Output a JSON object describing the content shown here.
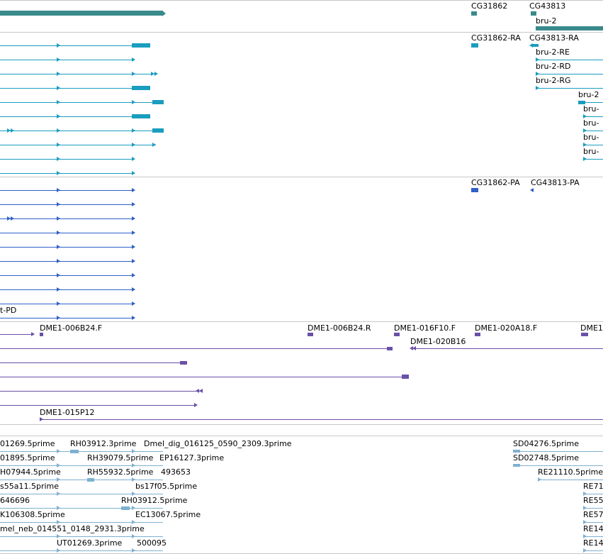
{
  "colors": {
    "gene": "#3a8a8c",
    "transcript": "#1a9dbf",
    "protein": "#3060c8",
    "clone": "#6a50a8",
    "est": "#7fb0d0",
    "separator": "#c8c8c8"
  },
  "gene_track": {
    "labels": [
      "CG31862",
      "CG43813",
      "bru-2"
    ]
  },
  "transcript_track": {
    "labels": [
      "CG31862-RA",
      "CG43813-RA",
      "bru-2-RE",
      "bru-2-RD",
      "bru-2-RG",
      "bru-2",
      "bru-",
      "bru-",
      "bru-",
      "bru-"
    ]
  },
  "protein_track": {
    "labels": [
      "CG31862-PA",
      "CG43813-PA",
      "t-PD"
    ]
  },
  "clone_track": {
    "labels": [
      "DME1-006B24.F",
      "DME1-006B24.R",
      "DME1-016F10.F",
      "DME1-020A18.F",
      "DME1",
      "DME1-020B16",
      "DME1-015P12"
    ]
  },
  "est_track": {
    "labels": [
      "01269.5prime",
      "RH03912.3prime",
      "Dmel_dig_016125_0590_2309.3prime",
      "SD04276.5prime",
      "01895.5prime",
      "RH39079.5prime",
      "EP16127.3prime",
      "SD02748.5prime",
      "H07944.5prime",
      "RH55932.5prime",
      "493653",
      "RE21110.5prime",
      "s55a11.5prime",
      "bs17f05.5prime",
      "RE71",
      "646696",
      "RH03912.5prime",
      "RE55",
      "K106308.5prime",
      "EC13067.5prime",
      "RE57",
      "mel_neb_014551_0148_2931.3prime",
      "RE14",
      "UT01269.3prime",
      "500095",
      "RE14"
    ]
  }
}
